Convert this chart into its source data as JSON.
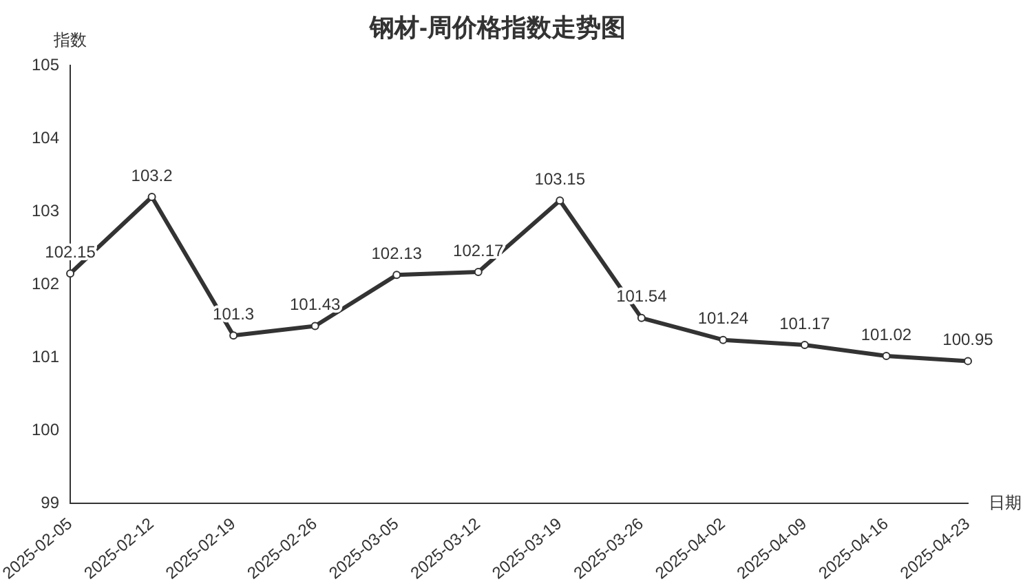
{
  "chart_data": {
    "type": "line",
    "title": "钢材-周价格指数走势图",
    "xlabel": "日期",
    "ylabel": "指数",
    "categories": [
      "2025-02-05",
      "2025-02-12",
      "2025-02-19",
      "2025-02-26",
      "2025-03-05",
      "2025-03-12",
      "2025-03-19",
      "2025-03-26",
      "2025-04-02",
      "2025-04-09",
      "2025-04-16",
      "2025-04-23"
    ],
    "series": [
      {
        "color": "#333333",
        "values": [
          102.15,
          103.2,
          101.3,
          101.43,
          102.13,
          102.17,
          103.15,
          101.54,
          101.24,
          101.17,
          101.02,
          100.95
        ]
      }
    ],
    "ylim": [
      99,
      105
    ],
    "yticks": [
      99,
      100,
      101,
      102,
      103,
      104,
      105
    ],
    "grid": false,
    "legend": false,
    "marker": "circle",
    "line_style": "solid",
    "data_labels": true
  }
}
